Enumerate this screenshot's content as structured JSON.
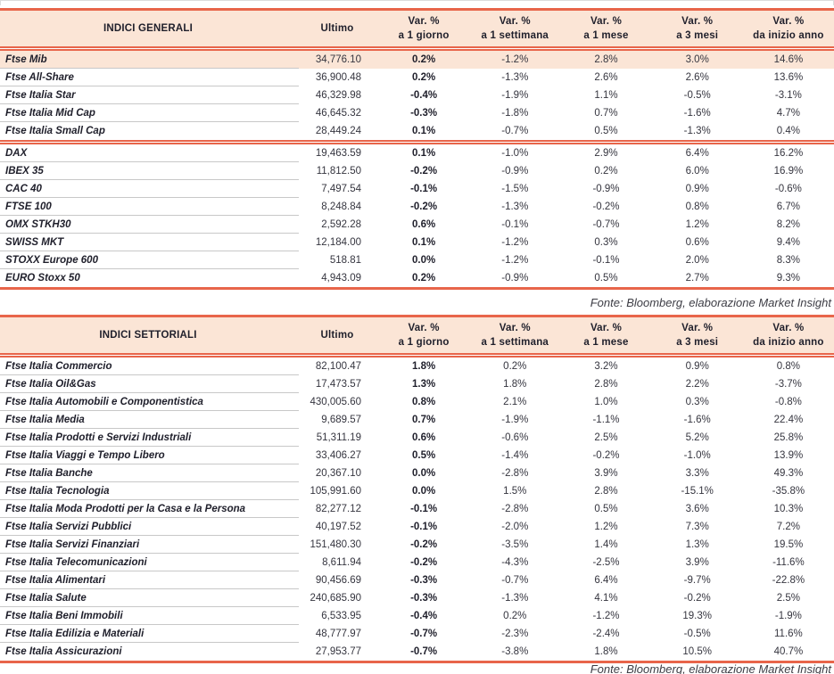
{
  "colors": {
    "accent_line": "#E8654A",
    "header_background": "#FBE5D6",
    "highlight_row_background": "#FBE5D6",
    "row_separator": "#C8C8C8",
    "text_dark": "#1F1F2B"
  },
  "tables": [
    {
      "title": "INDICI GENERALI",
      "value_column_label": "Ultimo",
      "var_label": "Var. %",
      "period_labels": [
        "a 1 giorno",
        "a 1 settimana",
        "a 1 mese",
        "a 3 mesi",
        "da inizio anno"
      ],
      "source_note": "Fonte: Bloomberg, elaborazione Market Insight",
      "groups": [
        {
          "name": "italian-general-indices",
          "rows": [
            {
              "name": "Ftse Mib",
              "ultimo": "34,776.10",
              "vars": [
                "0.2%",
                "-1.2%",
                "2.8%",
                "3.0%",
                "14.6%"
              ],
              "highlight": true
            },
            {
              "name": "Ftse All-Share",
              "ultimo": "36,900.48",
              "vars": [
                "0.2%",
                "-1.3%",
                "2.6%",
                "2.6%",
                "13.6%"
              ]
            },
            {
              "name": "Ftse Italia Star",
              "ultimo": "46,329.98",
              "vars": [
                "-0.4%",
                "-1.9%",
                "1.1%",
                "-0.5%",
                "-3.1%"
              ]
            },
            {
              "name": "Ftse Italia Mid Cap",
              "ultimo": "46,645.32",
              "vars": [
                "-0.3%",
                "-1.8%",
                "0.7%",
                "-1.6%",
                "4.7%"
              ]
            },
            {
              "name": "Ftse Italia Small Cap",
              "ultimo": "28,449.24",
              "vars": [
                "0.1%",
                "-0.7%",
                "0.5%",
                "-1.3%",
                "0.4%"
              ]
            }
          ]
        },
        {
          "name": "international-indices",
          "rows": [
            {
              "name": "DAX",
              "ultimo": "19,463.59",
              "vars": [
                "0.1%",
                "-1.0%",
                "2.9%",
                "6.4%",
                "16.2%"
              ]
            },
            {
              "name": "IBEX 35",
              "ultimo": "11,812.50",
              "vars": [
                "-0.2%",
                "-0.9%",
                "0.2%",
                "6.0%",
                "16.9%"
              ]
            },
            {
              "name": "CAC 40",
              "ultimo": "7,497.54",
              "vars": [
                "-0.1%",
                "-1.5%",
                "-0.9%",
                "0.9%",
                "-0.6%"
              ]
            },
            {
              "name": "FTSE 100",
              "ultimo": "8,248.84",
              "vars": [
                "-0.2%",
                "-1.3%",
                "-0.2%",
                "0.8%",
                "6.7%"
              ]
            },
            {
              "name": "OMX STKH30",
              "ultimo": "2,592.28",
              "vars": [
                "0.6%",
                "-0.1%",
                "-0.7%",
                "1.2%",
                "8.2%"
              ]
            },
            {
              "name": "SWISS MKT",
              "ultimo": "12,184.00",
              "vars": [
                "0.1%",
                "-1.2%",
                "0.3%",
                "0.6%",
                "9.4%"
              ]
            },
            {
              "name": "STOXX Europe 600",
              "ultimo": "518.81",
              "vars": [
                "0.0%",
                "-1.2%",
                "-0.1%",
                "2.0%",
                "8.3%"
              ]
            },
            {
              "name": "EURO Stoxx 50",
              "ultimo": "4,943.09",
              "vars": [
                "0.2%",
                "-0.9%",
                "0.5%",
                "2.7%",
                "9.3%"
              ]
            }
          ]
        }
      ]
    },
    {
      "title": "INDICI SETTORIALI",
      "value_column_label": "Ultimo",
      "var_label": "Var. %",
      "period_labels": [
        "a 1 giorno",
        "a 1 settimana",
        "a 1 mese",
        "a 3 mesi",
        "da inizio anno"
      ],
      "source_note": "Fonte: Bloomberg, elaborazione Market Insight",
      "groups": [
        {
          "name": "sector-indices",
          "rows": [
            {
              "name": "Ftse Italia Commercio",
              "ultimo": "82,100.47",
              "vars": [
                "1.8%",
                "0.2%",
                "3.2%",
                "0.9%",
                "0.8%"
              ]
            },
            {
              "name": "Ftse Italia Oil&Gas",
              "ultimo": "17,473.57",
              "vars": [
                "1.3%",
                "1.8%",
                "2.8%",
                "2.2%",
                "-3.7%"
              ]
            },
            {
              "name": "Ftse Italia Automobili e Componentistica",
              "ultimo": "430,005.60",
              "vars": [
                "0.8%",
                "2.1%",
                "1.0%",
                "0.3%",
                "-0.8%"
              ]
            },
            {
              "name": "Ftse Italia Media",
              "ultimo": "9,689.57",
              "vars": [
                "0.7%",
                "-1.9%",
                "-1.1%",
                "-1.6%",
                "22.4%"
              ]
            },
            {
              "name": "Ftse Italia Prodotti e Servizi Industriali",
              "ultimo": "51,311.19",
              "vars": [
                "0.6%",
                "-0.6%",
                "2.5%",
                "5.2%",
                "25.8%"
              ]
            },
            {
              "name": "Ftse Italia Viaggi e Tempo Libero",
              "ultimo": "33,406.27",
              "vars": [
                "0.5%",
                "-1.4%",
                "-0.2%",
                "-1.0%",
                "13.9%"
              ]
            },
            {
              "name": "Ftse Italia Banche",
              "ultimo": "20,367.10",
              "vars": [
                "0.0%",
                "-2.8%",
                "3.9%",
                "3.3%",
                "49.3%"
              ]
            },
            {
              "name": "Ftse Italia Tecnologia",
              "ultimo": "105,991.60",
              "vars": [
                "0.0%",
                "1.5%",
                "2.8%",
                "-15.1%",
                "-35.8%"
              ]
            },
            {
              "name": "Ftse Italia Moda Prodotti per la Casa e la Persona",
              "ultimo": "82,277.12",
              "vars": [
                "-0.1%",
                "-2.8%",
                "0.5%",
                "3.6%",
                "10.3%"
              ]
            },
            {
              "name": "Ftse Italia Servizi Pubblici",
              "ultimo": "40,197.52",
              "vars": [
                "-0.1%",
                "-2.0%",
                "1.2%",
                "7.3%",
                "7.2%"
              ]
            },
            {
              "name": "Ftse Italia Servizi Finanziari",
              "ultimo": "151,480.30",
              "vars": [
                "-0.2%",
                "-3.5%",
                "1.4%",
                "1.3%",
                "19.5%"
              ]
            },
            {
              "name": "Ftse Italia Telecomunicazioni",
              "ultimo": "8,611.94",
              "vars": [
                "-0.2%",
                "-4.3%",
                "-2.5%",
                "3.9%",
                "-11.6%"
              ]
            },
            {
              "name": "Ftse Italia Alimentari",
              "ultimo": "90,456.69",
              "vars": [
                "-0.3%",
                "-0.7%",
                "6.4%",
                "-9.7%",
                "-22.8%"
              ]
            },
            {
              "name": "Ftse Italia Salute",
              "ultimo": "240,685.90",
              "vars": [
                "-0.3%",
                "-1.3%",
                "4.1%",
                "-0.2%",
                "2.5%"
              ]
            },
            {
              "name": "Ftse Italia Beni Immobili",
              "ultimo": "6,533.95",
              "vars": [
                "-0.4%",
                "0.2%",
                "-1.2%",
                "19.3%",
                "-1.9%"
              ]
            },
            {
              "name": "Ftse Italia Edilizia e Materiali",
              "ultimo": "48,777.97",
              "vars": [
                "-0.7%",
                "-2.3%",
                "-2.4%",
                "-0.5%",
                "11.6%"
              ]
            },
            {
              "name": "Ftse Italia Assicurazioni",
              "ultimo": "27,953.77",
              "vars": [
                "-0.7%",
                "-3.8%",
                "1.8%",
                "10.5%",
                "40.7%"
              ]
            }
          ]
        }
      ]
    }
  ]
}
